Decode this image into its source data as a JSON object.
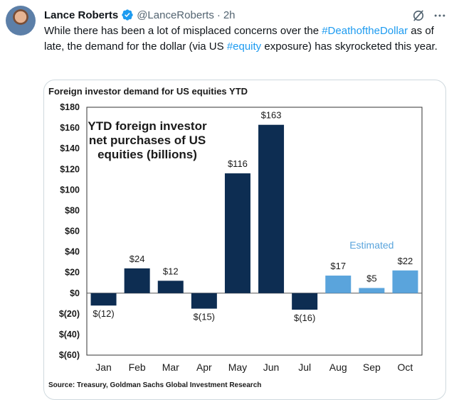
{
  "tweet": {
    "author_name": "Lance Roberts",
    "handle": "@LanceRoberts",
    "separator": "·",
    "time": "2h",
    "text_parts": [
      "While there has been a lot of misplaced concerns over the ",
      "#DeathoftheDollar",
      " as of late, the demand for the dollar (via US ",
      "#equity",
      " exposure) has skyrocketed this year."
    ]
  },
  "colors": {
    "bar_actual": "#0d2d52",
    "bar_estimated": "#5aa4dc",
    "estimated_label": "#5aa4dc",
    "hashtag": "#1d9bf0",
    "verified": "#1d9bf0"
  },
  "icons": [
    "verified-badge-icon",
    "grok-icon",
    "more-icon"
  ],
  "chart_data": {
    "type": "bar",
    "title": "Foreign investor demand for US equities YTD",
    "inset_title": [
      "YTD foreign investor",
      "net purchases of US",
      "equities (billions)"
    ],
    "categories": [
      "Jan",
      "Feb",
      "Mar",
      "Apr",
      "May",
      "Jun",
      "Jul",
      "Aug",
      "Sep",
      "Oct"
    ],
    "values": [
      -12,
      24,
      12,
      -15,
      116,
      163,
      -16,
      17,
      5,
      22
    ],
    "value_labels": [
      "$(12)",
      "$24",
      "$12",
      "$(15)",
      "$116",
      "$163",
      "$(16)",
      "$17",
      "$5",
      "$22"
    ],
    "estimated": [
      false,
      false,
      false,
      false,
      false,
      false,
      false,
      true,
      true,
      true
    ],
    "estimated_label": "Estimated",
    "ylim": [
      -60,
      180
    ],
    "yticks": [
      180,
      160,
      140,
      120,
      100,
      80,
      60,
      40,
      20,
      0,
      -20,
      -40,
      -60
    ],
    "ytick_labels": [
      "$180",
      "$160",
      "$140",
      "$120",
      "$100",
      "$80",
      "$60",
      "$40",
      "$20",
      "$0",
      "$(20)",
      "$(40)",
      "$(60)"
    ],
    "source": "Source: Treasury, Goldman Sachs Global Investment Research",
    "xlabel": "",
    "ylabel": ""
  }
}
